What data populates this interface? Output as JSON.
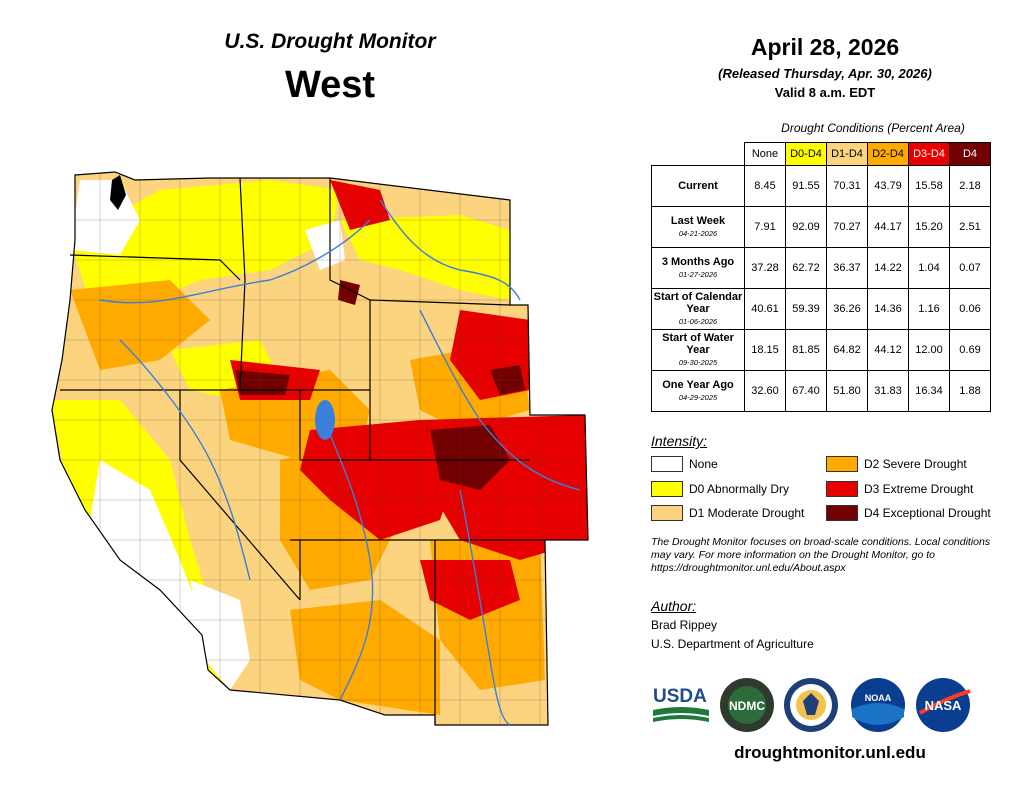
{
  "header": {
    "title": "U.S. Drought Monitor",
    "region": "West"
  },
  "date": {
    "main": "April 28, 2026",
    "released": "(Released Thursday, Apr. 30, 2026)",
    "valid": "Valid 8 a.m. EDT"
  },
  "table": {
    "caption": "Drought Conditions (Percent Area)",
    "columns": [
      {
        "label": "None",
        "color": "#ffffff",
        "text_color": "#000000"
      },
      {
        "label": "D0-D4",
        "color": "#ffff00",
        "text_color": "#000000"
      },
      {
        "label": "D1-D4",
        "color": "#fcd37f",
        "text_color": "#000000"
      },
      {
        "label": "D2-D4",
        "color": "#ffaa00",
        "text_color": "#000000"
      },
      {
        "label": "D3-D4",
        "color": "#e60000",
        "text_color": "#ffffff"
      },
      {
        "label": "D4",
        "color": "#730000",
        "text_color": "#ffffff"
      }
    ],
    "rows": [
      {
        "label": "Current",
        "date": "",
        "values": [
          "8.45",
          "91.55",
          "70.31",
          "43.79",
          "15.58",
          "2.18"
        ]
      },
      {
        "label": "Last Week",
        "date": "04-21-2026",
        "values": [
          "7.91",
          "92.09",
          "70.27",
          "44.17",
          "15.20",
          "2.51"
        ]
      },
      {
        "label": "3 Months Ago",
        "date": "01-27-2026",
        "values": [
          "37.28",
          "62.72",
          "36.37",
          "14.22",
          "1.04",
          "0.07"
        ]
      },
      {
        "label": "Start of Calendar Year",
        "date": "01-06-2026",
        "values": [
          "40.61",
          "59.39",
          "36.26",
          "14.36",
          "1.16",
          "0.06"
        ]
      },
      {
        "label": "Start of Water Year",
        "date": "09-30-2025",
        "values": [
          "18.15",
          "81.85",
          "64.82",
          "44.12",
          "12.00",
          "0.69"
        ]
      },
      {
        "label": "One Year Ago",
        "date": "04-29-2025",
        "values": [
          "32.60",
          "67.40",
          "51.80",
          "31.83",
          "16.34",
          "1.88"
        ]
      }
    ]
  },
  "legend": {
    "title": "Intensity:",
    "items": [
      {
        "label": "None",
        "color": "#ffffff"
      },
      {
        "label": "D0 Abnormally Dry",
        "color": "#ffff00"
      },
      {
        "label": "D1 Moderate Drought",
        "color": "#fcd37f"
      },
      {
        "label": "D2 Severe Drought",
        "color": "#ffaa00"
      },
      {
        "label": "D3 Extreme Drought",
        "color": "#e60000"
      },
      {
        "label": "D4 Exceptional Drought",
        "color": "#730000"
      }
    ]
  },
  "note": "The Drought Monitor focuses on broad-scale conditions. Local conditions may vary. For more information on the Drought Monitor, go to https://droughtmonitor.unl.edu/About.aspx",
  "author": {
    "title": "Author:",
    "name": "Brad Rippey",
    "org": "U.S. Department of Agriculture"
  },
  "logos": {
    "usda": "USDA",
    "ndmc": "NDMC",
    "noaa": "NOAA",
    "nasa": "NASA"
  },
  "website": "droughtmonitor.unl.edu"
}
